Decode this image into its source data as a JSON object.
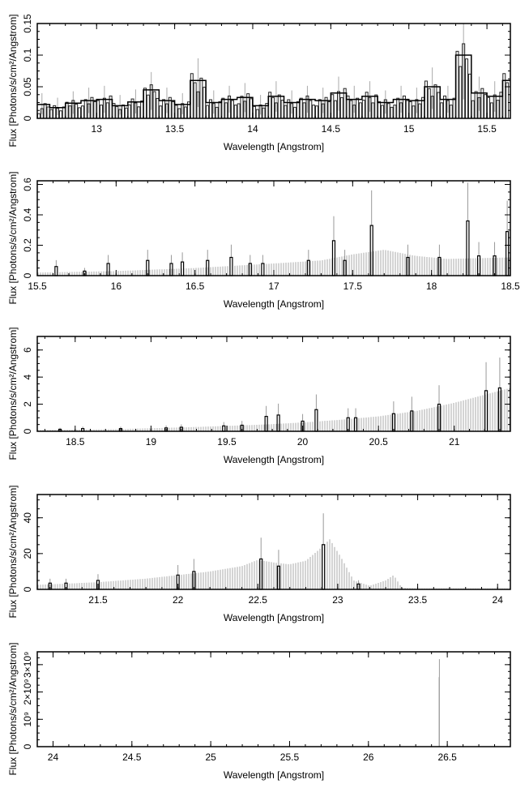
{
  "chart_data": [
    {
      "type": "bar",
      "title": "",
      "xlabel": "Wavelength [Angstrom]",
      "ylabel": "Flux [Photons/s/cm²/Angstrom]",
      "xlim": [
        12.62,
        15.65
      ],
      "ylim": [
        0,
        0.15
      ],
      "xticks": [
        13,
        13.5,
        14,
        14.5,
        15,
        15.5
      ],
      "xticklabels": [
        "13",
        "13.5",
        "14",
        "14.5",
        "15",
        "15.5"
      ],
      "yticks": [
        0,
        0.05,
        0.1,
        0.15
      ],
      "yticklabels": [
        "0",
        "0.05",
        "0.1",
        "0.15"
      ],
      "style": "step",
      "bins": {
        "x": [
          12.65,
          12.75,
          12.85,
          12.95,
          13.05,
          13.15,
          13.25,
          13.35,
          13.45,
          13.55,
          13.65,
          13.75,
          13.85,
          13.95,
          14.05,
          14.15,
          14.25,
          14.35,
          14.45,
          14.55,
          14.65,
          14.75,
          14.85,
          14.95,
          15.05,
          15.15,
          15.25,
          15.35,
          15.45,
          15.55,
          15.65
        ],
        "y": [
          0.022,
          0.017,
          0.024,
          0.028,
          0.03,
          0.02,
          0.026,
          0.045,
          0.028,
          0.022,
          0.06,
          0.025,
          0.03,
          0.033,
          0.02,
          0.035,
          0.025,
          0.03,
          0.028,
          0.04,
          0.03,
          0.035,
          0.025,
          0.03,
          0.028,
          0.05,
          0.03,
          0.1,
          0.04,
          0.035,
          0.06
        ]
      }
    },
    {
      "type": "bar",
      "xlabel": "Wavelength [Angstrom]",
      "ylabel": "Flux [Photons/s/cm²/Angstrom]",
      "xlim": [
        15.5,
        18.5
      ],
      "ylim": [
        0,
        0.624
      ],
      "xticks": [
        15.5,
        16,
        16.5,
        17,
        17.5,
        18,
        18.5
      ],
      "xticklabels": [
        "15.5",
        "16",
        "16.5",
        "17",
        "17.5",
        "18",
        "18.5"
      ],
      "yticks": [
        0,
        0.2,
        0.4,
        0.6
      ],
      "yticklabels": [
        "0",
        "0.2",
        "0.4",
        "0.6"
      ],
      "model": {
        "x": [
          15.5,
          16,
          16.5,
          17,
          17.3,
          17.5,
          17.7,
          17.9,
          18.1,
          18.5
        ],
        "y": [
          0.02,
          0.03,
          0.05,
          0.08,
          0.1,
          0.14,
          0.17,
          0.13,
          0.11,
          0.12
        ]
      },
      "bins": {
        "x": [
          15.62,
          15.8,
          15.95,
          16.2,
          16.35,
          16.42,
          16.58,
          16.73,
          16.85,
          16.93,
          17.22,
          17.38,
          17.45,
          17.62,
          17.85,
          18.05,
          18.23,
          18.3,
          18.4,
          18.48
        ],
        "y": [
          0.06,
          0.03,
          0.08,
          0.1,
          0.08,
          0.09,
          0.1,
          0.12,
          0.08,
          0.08,
          0.1,
          0.23,
          0.1,
          0.33,
          0.12,
          0.12,
          0.36,
          0.13,
          0.13,
          0.29
        ]
      }
    },
    {
      "type": "bar",
      "xlabel": "Wavelength [Angstrom]",
      "ylabel": "Flux [Photons/s/cm²/Angstrom]",
      "xlim": [
        18.25,
        21.37
      ],
      "ylim": [
        0,
        7
      ],
      "xticks": [
        18.5,
        19,
        19.5,
        20,
        20.5,
        21
      ],
      "xticklabels": [
        "18.5",
        "19",
        "19.5",
        "20",
        "20.5",
        "21"
      ],
      "yticks": [
        0,
        2,
        4,
        6
      ],
      "yticklabels": [
        "0",
        "2",
        "4",
        "6"
      ],
      "model": {
        "x": [
          18.25,
          18.75,
          19.25,
          19.75,
          20.0,
          20.25,
          20.5,
          20.75,
          21.0,
          21.37
        ],
        "y": [
          0.1,
          0.15,
          0.3,
          0.5,
          0.65,
          0.85,
          1.1,
          1.5,
          2.1,
          3.2
        ]
      },
      "bins": {
        "x": [
          18.4,
          18.55,
          18.8,
          19.1,
          19.2,
          19.48,
          19.6,
          19.76,
          19.84,
          20.0,
          20.09,
          20.3,
          20.35,
          20.6,
          20.72,
          20.9,
          21.21,
          21.3
        ],
        "y": [
          0.15,
          0.2,
          0.2,
          0.25,
          0.3,
          0.4,
          0.45,
          1.1,
          1.2,
          0.75,
          1.6,
          1.0,
          1.0,
          1.3,
          1.5,
          2.0,
          3.0,
          3.2
        ]
      }
    },
    {
      "type": "bar",
      "xlabel": "Wavelength [Angstrom]",
      "ylabel": "Flux [Photons/s/cm²/Angstrom]",
      "xlim": [
        21.12,
        24.08
      ],
      "ylim": [
        0,
        53
      ],
      "xticks": [
        21.5,
        22,
        22.5,
        23,
        23.5,
        24
      ],
      "xticklabels": [
        "21.5",
        "22",
        "22.5",
        "23",
        "23.5",
        "24"
      ],
      "yticks": [
        0,
        20,
        40
      ],
      "yticklabels": [
        "0",
        "20",
        "40"
      ],
      "model": {
        "x": [
          21.12,
          21.5,
          21.8,
          22.0,
          22.2,
          22.4,
          22.5,
          22.6,
          22.7,
          22.8,
          22.88,
          22.95,
          23.02,
          23.1,
          23.2,
          23.3,
          23.35,
          23.4,
          23.5,
          24.08
        ],
        "y": [
          2.5,
          4,
          6,
          8,
          10,
          13,
          16.5,
          15,
          14,
          16,
          22,
          28,
          18,
          5,
          2,
          5,
          8,
          1,
          0.5,
          0.5
        ]
      },
      "bins": {
        "x": [
          21.2,
          21.3,
          21.5,
          22.0,
          22.1,
          22.52,
          22.63,
          22.91,
          23.13
        ],
        "y": [
          3.5,
          3.5,
          5,
          8,
          10,
          17,
          13,
          25,
          3
        ]
      }
    },
    {
      "type": "bar",
      "xlabel": "Wavelength [Angstrom]",
      "ylabel": "Flux [Photons/s/cm²/Angstrom]",
      "xlim": [
        23.9,
        26.9
      ],
      "ylim": [
        0,
        3470000000
      ],
      "xticks": [
        24,
        24.5,
        25,
        25.5,
        26,
        26.5
      ],
      "xticklabels": [
        "24",
        "24.5",
        "25",
        "25.5",
        "26",
        "26.5"
      ],
      "yticks": [
        0,
        1000000000,
        2000000000,
        3000000000
      ],
      "yticklabels": [
        "0",
        "10⁹",
        "2×10⁹",
        "3×10⁹"
      ],
      "model": {
        "x": [
          23.9,
          26.44,
          26.45,
          26.46,
          26.9
        ],
        "y": [
          0,
          0,
          3200000000,
          0,
          0
        ]
      },
      "bins": {
        "x": [],
        "y": []
      }
    }
  ]
}
